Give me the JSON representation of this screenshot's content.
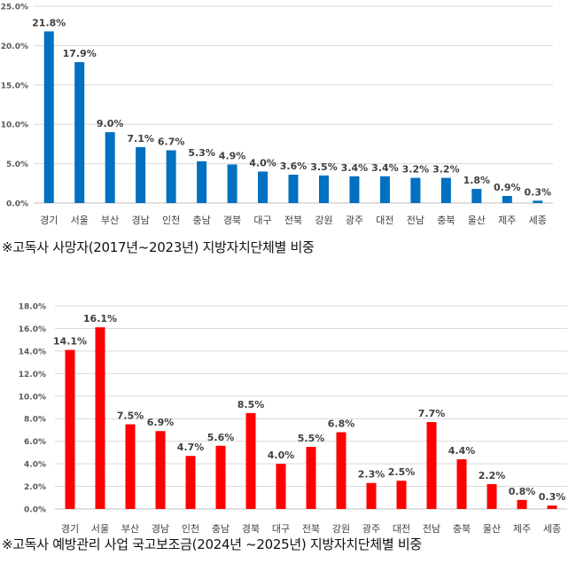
{
  "chart_data": [
    {
      "type": "bar",
      "categories": [
        "경기",
        "서울",
        "부산",
        "경남",
        "인천",
        "충남",
        "경북",
        "대구",
        "전북",
        "강원",
        "광주",
        "대전",
        "전남",
        "충북",
        "울산",
        "제주",
        "세종"
      ],
      "values": [
        21.8,
        17.9,
        9.0,
        7.1,
        6.7,
        5.3,
        4.9,
        4.0,
        3.6,
        3.5,
        3.4,
        3.4,
        3.2,
        3.2,
        1.8,
        0.9,
        0.3
      ],
      "labels": [
        "21.8%",
        "17.9%",
        "9.0%",
        "7.1%",
        "6.7%",
        "5.3%",
        "4.9%",
        "4.0%",
        "3.6%",
        "3.5%",
        "3.4%",
        "3.4%",
        "3.2%",
        "3.2%",
        "1.8%",
        "0.9%",
        "0.3%"
      ],
      "yticks": [
        "0.0%",
        "5.0%",
        "10.0%",
        "15.0%",
        "20.0%",
        "25.0%"
      ],
      "ylim": [
        0,
        25
      ],
      "color": "#0070C0",
      "caption": "※고독사 사망자(2017년~2023년) 지방자치단체별 비중"
    },
    {
      "type": "bar",
      "categories": [
        "경기",
        "서울",
        "부산",
        "경남",
        "인천",
        "충남",
        "경북",
        "대구",
        "전북",
        "강원",
        "광주",
        "대전",
        "전남",
        "충북",
        "울산",
        "제주",
        "세종"
      ],
      "values": [
        14.1,
        16.1,
        7.5,
        6.9,
        4.7,
        5.6,
        8.5,
        4.0,
        5.5,
        6.8,
        2.3,
        2.5,
        7.7,
        4.4,
        2.2,
        0.8,
        0.3
      ],
      "labels": [
        "14.1%",
        "16.1%",
        "7.5%",
        "6.9%",
        "4.7%",
        "5.6%",
        "8.5%",
        "4.0%",
        "5.5%",
        "6.8%",
        "2.3%",
        "2.5%",
        "7.7%",
        "4.4%",
        "2.2%",
        "0.8%",
        "0.3%"
      ],
      "yticks": [
        "0.0%",
        "2.0%",
        "4.0%",
        "6.0%",
        "8.0%",
        "10.0%",
        "12.0%",
        "14.0%",
        "16.0%",
        "18.0%"
      ],
      "ylim": [
        0,
        18
      ],
      "color": "#FF0000",
      "caption": "※고독사 예방관리 사업 국고보조금(2024년 ~2025년) 지방자치단체별 비중"
    }
  ]
}
